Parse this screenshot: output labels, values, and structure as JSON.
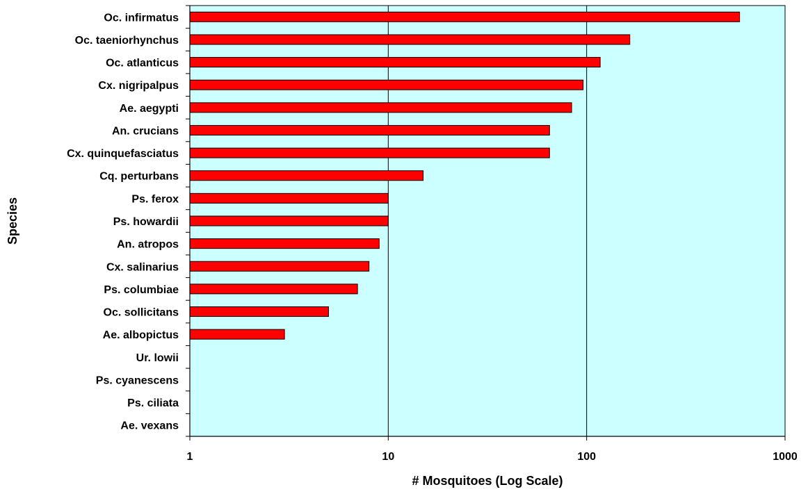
{
  "chart_data": {
    "type": "bar",
    "orientation": "horizontal",
    "xlabel": "# Mosquitoes (Log Scale)",
    "ylabel": "Species",
    "x_scale": "log",
    "xlim": [
      1,
      1000
    ],
    "x_ticks": [
      1,
      10,
      100,
      1000
    ],
    "x_tick_labels": [
      "1",
      "10",
      "100",
      "1000"
    ],
    "grid": "vertical major gridlines",
    "legend": "none",
    "categories": [
      "Oc. infirmatus",
      "Oc. taeniorhynchus",
      "Oc. atlanticus",
      "Cx. nigripalpus",
      "Ae. aegypti",
      "An. crucians",
      "Cx. quinquefasciatus",
      "Cq. perturbans",
      "Ps. ferox",
      "Ps. howardii",
      "An. atropos",
      "Cx. salinarius",
      "Ps. columbiae",
      "Oc. sollicitans",
      "Ae. albopictus",
      "Ur. lowii",
      "Ps. cyanescens",
      "Ps. ciliata",
      "Ae. vexans"
    ],
    "values": [
      590,
      165,
      117,
      96,
      84,
      65,
      65,
      15,
      10,
      10,
      9,
      8,
      7,
      5,
      3,
      1,
      1,
      1,
      1
    ],
    "colors": {
      "bar_fill": "#ff0000",
      "bar_stroke": "#000000",
      "plot_background": "#ccffff",
      "gridline": "#000000"
    }
  }
}
